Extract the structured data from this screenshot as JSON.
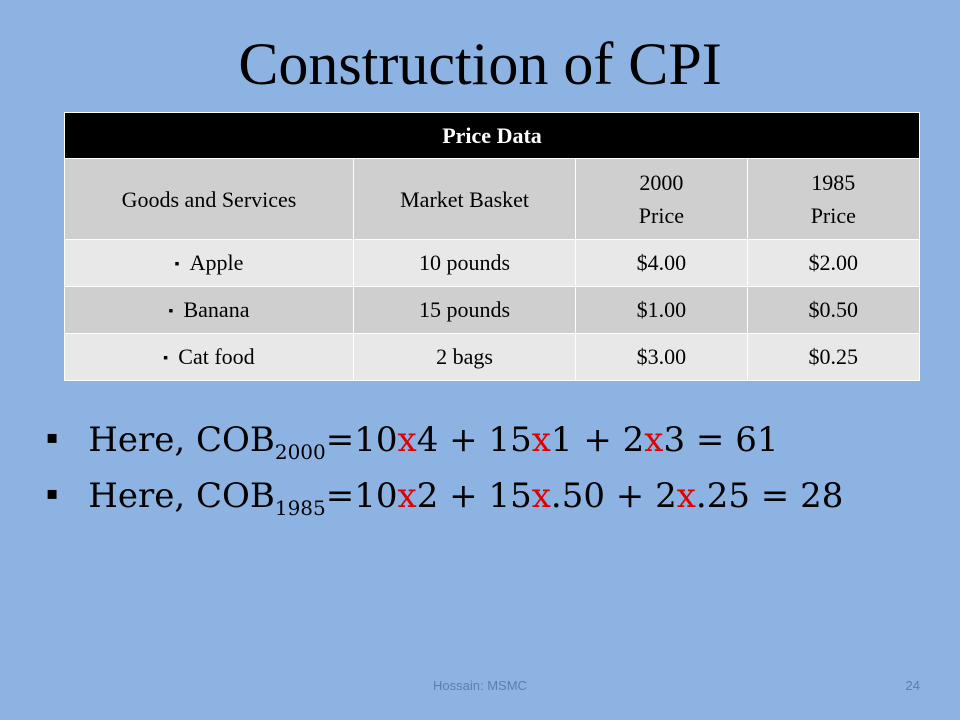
{
  "slide": {
    "title": "Construction of CPI",
    "table": {
      "heading": "Price Data",
      "columns": [
        "Goods and Services",
        "Market Basket",
        "2000",
        "Price",
        "1985",
        "Price"
      ],
      "rows": [
        {
          "item": "Apple",
          "basket": "10 pounds",
          "p2000": "$4.00",
          "p1985": "$2.00"
        },
        {
          "item": "Banana",
          "basket": "15 pounds",
          "p2000": "$1.00",
          "p1985": "$0.50"
        },
        {
          "item": "Cat food",
          "basket": "2 bags",
          "p2000": "$3.00",
          "p1985": "$0.25"
        }
      ]
    },
    "bullets": [
      {
        "prefix": "Here, COB",
        "sub": "2000",
        "parts": [
          "=10",
          "x",
          "4 + 15",
          "x",
          "1 + 2",
          "x",
          "3 = 61"
        ]
      },
      {
        "prefix": "Here, COB",
        "sub": "1985",
        "parts": [
          "=10",
          "x",
          "2 + 15",
          "x",
          ".50 + 2",
          "x",
          ".25 = 28"
        ]
      }
    ],
    "bullet_mark": "▪",
    "footer": {
      "left": "Hossain: MSMC",
      "page": "24"
    },
    "colors": {
      "background": "#8db3e2",
      "accent_red": "#e00000"
    }
  }
}
